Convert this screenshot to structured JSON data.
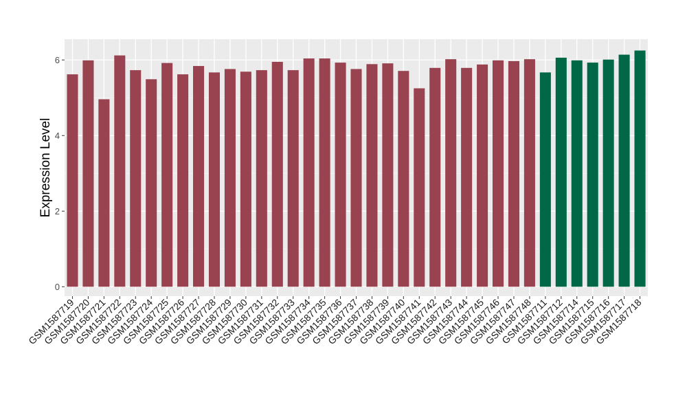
{
  "chart_data": {
    "type": "bar",
    "title": "",
    "xlabel": "",
    "ylabel": "Expression Level",
    "ylim": [
      -0.25,
      6.55
    ],
    "yticks": [
      0,
      2,
      4,
      6
    ],
    "grid": true,
    "legend": "none",
    "colors": {
      "panel": "#ebebeb",
      "grid_major": "#ffffff",
      "grid_minor": "#f5f5f5",
      "group_a": "#9a4350",
      "group_b": "#006847"
    },
    "categories": [
      "GSM1587719",
      "GSM1587720",
      "GSM1587721",
      "GSM1587722",
      "GSM1587723",
      "GSM1587724",
      "GSM1587725",
      "GSM1587726",
      "GSM1587727",
      "GSM1587728",
      "GSM1587729",
      "GSM1587730",
      "GSM1587731",
      "GSM1587732",
      "GSM1587733",
      "GSM1587734",
      "GSM1587735",
      "GSM1587736",
      "GSM1587737",
      "GSM1587738",
      "GSM1587739",
      "GSM1587740",
      "GSM1587741",
      "GSM1587742",
      "GSM1587743",
      "GSM1587744",
      "GSM1587745",
      "GSM1587746",
      "GSM1587747",
      "GSM1587748",
      "GSM1587711",
      "GSM1587712",
      "GSM1587714",
      "GSM1587715",
      "GSM1587716",
      "GSM1587717",
      "GSM1587718"
    ],
    "values": [
      5.62,
      5.99,
      4.96,
      6.12,
      5.73,
      5.49,
      5.92,
      5.62,
      5.84,
      5.67,
      5.76,
      5.69,
      5.73,
      5.95,
      5.73,
      6.04,
      6.04,
      5.93,
      5.76,
      5.89,
      5.91,
      5.71,
      5.25,
      5.79,
      6.02,
      5.79,
      5.88,
      5.99,
      5.97,
      6.02,
      5.67,
      6.06,
      5.99,
      5.93,
      6.01,
      6.14,
      6.25
    ],
    "groups": [
      "a",
      "a",
      "a",
      "a",
      "a",
      "a",
      "a",
      "a",
      "a",
      "a",
      "a",
      "a",
      "a",
      "a",
      "a",
      "a",
      "a",
      "a",
      "a",
      "a",
      "a",
      "a",
      "a",
      "a",
      "a",
      "a",
      "a",
      "a",
      "a",
      "a",
      "b",
      "b",
      "b",
      "b",
      "b",
      "b",
      "b"
    ]
  }
}
